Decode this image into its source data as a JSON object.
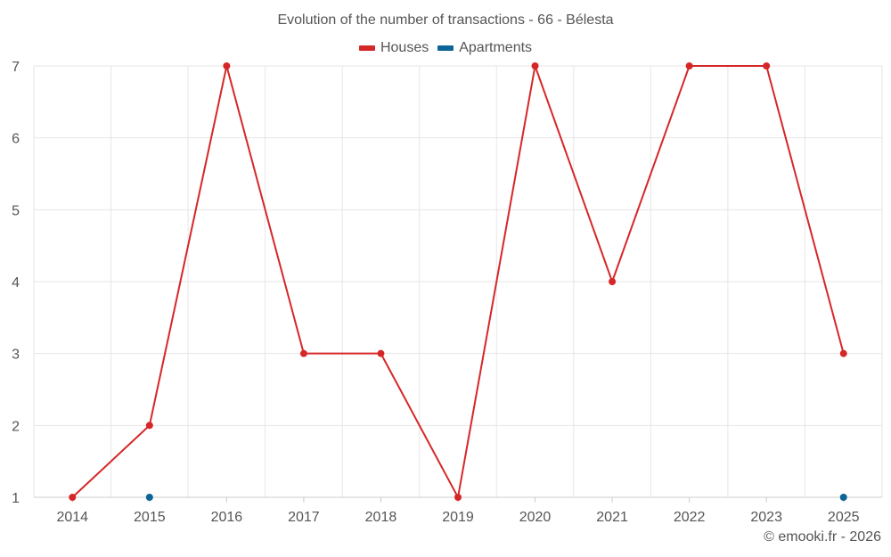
{
  "chart_data": {
    "type": "line",
    "title": "Evolution of the number of transactions - 66 - Bélesta",
    "xlabel": "",
    "ylabel": "",
    "categories": [
      "2014",
      "2015",
      "2016",
      "2017",
      "2018",
      "2019",
      "2020",
      "2021",
      "2022",
      "2023",
      "2025"
    ],
    "ylim": [
      1,
      7
    ],
    "yticks": [
      1,
      2,
      3,
      4,
      5,
      6,
      7
    ],
    "grid": true,
    "legend_position": "top-center",
    "series": [
      {
        "name": "Houses",
        "color": "#d62728",
        "values": [
          1,
          2,
          7,
          3,
          3,
          1,
          7,
          4,
          7,
          7,
          3
        ]
      },
      {
        "name": "Apartments",
        "color": "#0d6496",
        "values": [
          null,
          1,
          null,
          null,
          null,
          null,
          null,
          null,
          null,
          null,
          1
        ]
      }
    ]
  },
  "credit": "© emooki.fr - 2026"
}
